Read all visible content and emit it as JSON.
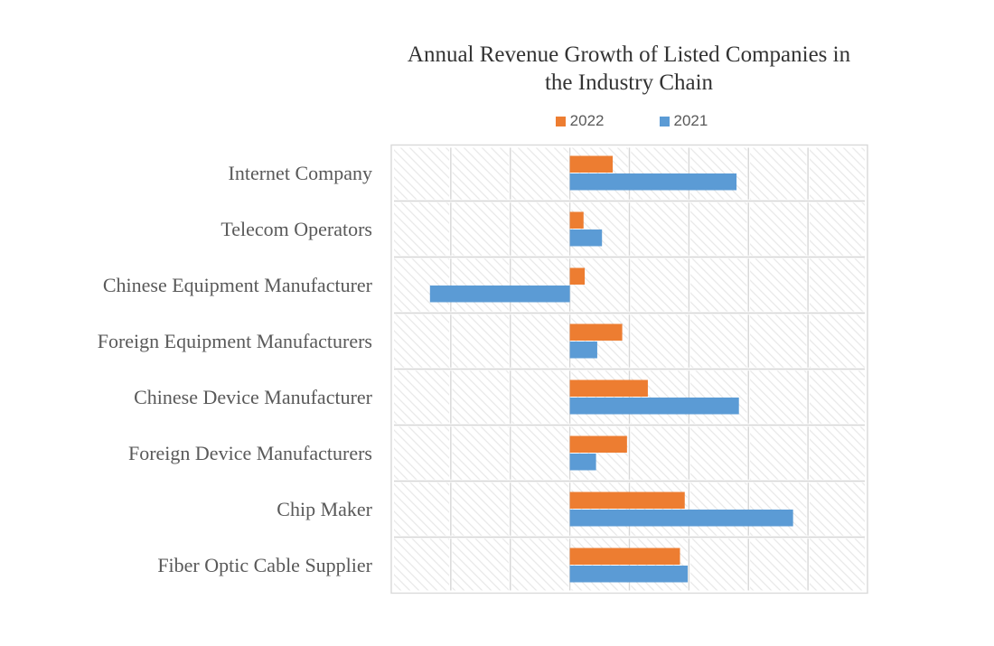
{
  "chart_data": {
    "type": "bar",
    "orientation": "horizontal",
    "title": "Annual Revenue Growth of Listed Companies in the Industry Chain",
    "title_lines": [
      "Annual Revenue Growth of Listed Companies in",
      "the Industry Chain"
    ],
    "categories": [
      "Internet Company",
      "Telecom Operators",
      "Chinese Equipment Manufacturer",
      "Foreign Equipment Manufacturers",
      "Chinese Device Manufacturer",
      "Foreign Device Manufacturers",
      "Chip Maker",
      "Fiber Optic Cable Supplier"
    ],
    "series": [
      {
        "name": "2022",
        "color": "#ED7D31",
        "values": [
          7.2,
          2.3,
          2.5,
          8.8,
          13.1,
          9.6,
          19.3,
          18.5
        ]
      },
      {
        "name": "2021",
        "color": "#5B9BD5",
        "values": [
          28.0,
          5.4,
          -23.5,
          4.6,
          28.4,
          4.4,
          37.5,
          19.8
        ]
      }
    ],
    "unit": "percent",
    "xlim": [
      -30,
      50
    ],
    "grid_step": 10,
    "grid": true,
    "legend_position": "top-center",
    "plot_background": "light-downward-diagonal-hatch",
    "xlabel": "",
    "ylabel": ""
  },
  "colors": {
    "background": "#FFFFFF",
    "series_2022": "#ED7D31",
    "series_2021": "#5B9BD5",
    "gridline": "#D6D6D6",
    "plot_border": "#D9D9D9",
    "hatch_line": "#E9E9E9",
    "title_text": "#333333",
    "axis_label_text": "#595959",
    "legend_text": "#595959"
  }
}
